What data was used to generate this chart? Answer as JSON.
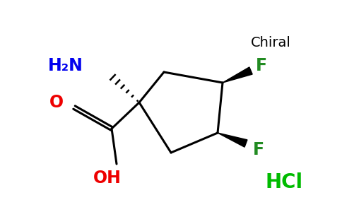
{
  "background_color": "#ffffff",
  "chiral_label": "Chiral",
  "chiral_color": "#000000",
  "chiral_fontsize": 14,
  "hcl_label": "HCl",
  "hcl_color": "#00bb00",
  "hcl_fontsize": 20,
  "h2n_label": "H₂N",
  "h2n_color": "#0000ee",
  "h2n_fontsize": 17,
  "o_label": "O",
  "o_color": "#ee0000",
  "o_fontsize": 17,
  "oh_label": "OH",
  "oh_color": "#ee0000",
  "oh_fontsize": 17,
  "f1_label": "F",
  "f1_color": "#228b22",
  "f1_fontsize": 17,
  "f2_label": "F",
  "f2_color": "#228b22",
  "f2_fontsize": 17,
  "lw": 2.2
}
